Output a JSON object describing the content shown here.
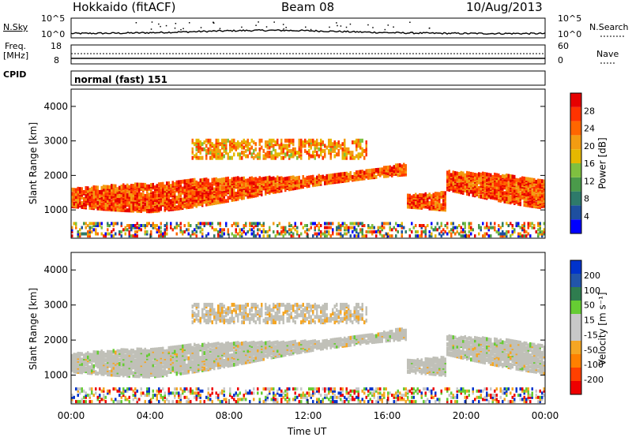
{
  "header": {
    "station": "Hokkaido (fitACF)",
    "beam": "Beam 08",
    "date": "10/Aug/2013"
  },
  "noise_panel": {
    "left_label": "N.Sky",
    "right_label": "N.Search",
    "left_ticks": [
      "10^5",
      "10^0"
    ],
    "right_ticks": [
      "10^5",
      "10^0"
    ]
  },
  "freq_panel": {
    "left_label_1": "Freq.",
    "left_label_2": "[MHz]",
    "right_label": "Nave",
    "left_ticks": [
      "18",
      "8"
    ],
    "right_ticks": [
      "60",
      "0"
    ]
  },
  "cpid_panel": {
    "label": "CPID",
    "mode_text": "normal (fast) 151"
  },
  "colors": {
    "power_scale": [
      "#0000ff",
      "#1e4fa0",
      "#2e7a6a",
      "#4a9a4a",
      "#7fc040",
      "#e6b800",
      "#f39c12",
      "#ff6600",
      "#ff3300",
      "#e60000"
    ],
    "velocity_scale": [
      "#0033cc",
      "#2255aa",
      "#2f7d4f",
      "#66cc33",
      "#c8c8c8",
      "#c8c8c8",
      "#f5a623",
      "#ff8000",
      "#ff4000",
      "#ee0000"
    ],
    "velocity_gray": "#c0c0b8"
  },
  "chart_data": [
    {
      "type": "heatmap",
      "title": "Hokkaido (fitACF) Beam 08 10/Aug/2013",
      "parameter": "Power",
      "ylabel": "Slant Range [km]",
      "xlabel": "Time UT",
      "x_ticks": [
        "00:00",
        "04:00",
        "08:00",
        "12:00",
        "16:00",
        "20:00",
        "00:00"
      ],
      "y_ticks": [
        "1000",
        "2000",
        "3000",
        "4000"
      ],
      "ylim": [
        180,
        4500
      ],
      "colorbar_label": "Power [dB]",
      "colorbar_ticks": [
        "4",
        "8",
        "12",
        "16",
        "20",
        "24",
        "28"
      ],
      "colorbar_range": [
        0,
        30
      ],
      "echo_regions": [
        {
          "name": "main band",
          "x_hours": [
            0,
            24
          ],
          "range_km_start": [
            1250,
            1350
          ],
          "range_km_mid": [
            1300,
            2000
          ],
          "range_km_end": [
            1200,
            1500
          ],
          "power_db": 26
        },
        {
          "name": "upper band",
          "x_hours": [
            6,
            15
          ],
          "range_km": [
            2500,
            3000
          ],
          "power_db": 22
        }
      ]
    },
    {
      "type": "heatmap",
      "parameter": "Velocity",
      "ylabel": "Slant Range [km]",
      "xlabel": "Time UT",
      "x_ticks": [
        "00:00",
        "04:00",
        "08:00",
        "12:00",
        "16:00",
        "20:00",
        "00:00"
      ],
      "y_ticks": [
        "1000",
        "2000",
        "3000",
        "4000"
      ],
      "ylim": [
        180,
        4500
      ],
      "colorbar_label": "Velocity [m s-1]",
      "colorbar_ticks": [
        "200",
        "100",
        "50",
        "15",
        "-15",
        "-50",
        "-100",
        "-200"
      ],
      "colorbar_range": [
        -250,
        250
      ]
    }
  ],
  "axis": {
    "x_title": "Time UT",
    "y_title": "Slant Range [km]",
    "power_cb_title": "Power [dB]",
    "vel_cb_title": "Velocity [m s⁻¹]"
  }
}
